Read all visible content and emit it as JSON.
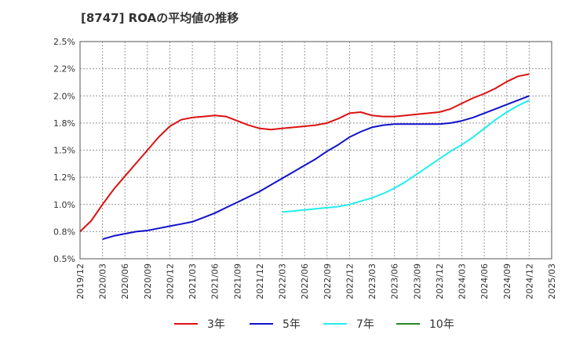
{
  "chart_data": {
    "type": "line",
    "title": "[8747]  ROAの平均値の推移",
    "xlabel": "",
    "ylabel": "",
    "ylim": [
      0.5,
      2.5
    ],
    "yticks": [
      "2.5%",
      "2.2%",
      "2.0%",
      "1.8%",
      "1.5%",
      "1.2%",
      "1.0%",
      "0.8%",
      "0.5%"
    ],
    "xticks": [
      "2019/12",
      "2020/03",
      "2020/06",
      "2020/09",
      "2020/12",
      "2021/03",
      "2021/06",
      "2021/09",
      "2021/12",
      "2022/03",
      "2022/06",
      "2022/09",
      "2022/12",
      "2023/03",
      "2023/06",
      "2023/09",
      "2023/12",
      "2024/03",
      "2024/06",
      "2024/09",
      "2024/12",
      "2025/03"
    ],
    "grid": true,
    "legend_position": "bottom",
    "series": [
      {
        "name": "3年",
        "color": "#dd1111",
        "points": [
          [
            0,
            0.75
          ],
          [
            0.5,
            0.85
          ],
          [
            1,
            1.0
          ],
          [
            1.5,
            1.14
          ],
          [
            2,
            1.26
          ],
          [
            2.5,
            1.38
          ],
          [
            3,
            1.5
          ],
          [
            3.5,
            1.62
          ],
          [
            4,
            1.72
          ],
          [
            4.5,
            1.78
          ],
          [
            5,
            1.8
          ],
          [
            5.5,
            1.81
          ],
          [
            6,
            1.82
          ],
          [
            6.5,
            1.81
          ],
          [
            7,
            1.77
          ],
          [
            7.5,
            1.73
          ],
          [
            8,
            1.7
          ],
          [
            8.5,
            1.69
          ],
          [
            9,
            1.7
          ],
          [
            9.5,
            1.71
          ],
          [
            10,
            1.72
          ],
          [
            10.5,
            1.73
          ],
          [
            11,
            1.75
          ],
          [
            11.5,
            1.79
          ],
          [
            12,
            1.84
          ],
          [
            12.5,
            1.85
          ],
          [
            13,
            1.82
          ],
          [
            13.5,
            1.81
          ],
          [
            14,
            1.81
          ],
          [
            14.5,
            1.82
          ],
          [
            15,
            1.83
          ],
          [
            15.5,
            1.84
          ],
          [
            16,
            1.85
          ],
          [
            16.5,
            1.88
          ],
          [
            17,
            1.93
          ],
          [
            17.5,
            1.98
          ],
          [
            18,
            2.02
          ],
          [
            18.5,
            2.07
          ],
          [
            19,
            2.13
          ],
          [
            19.5,
            2.18
          ],
          [
            20,
            2.2
          ]
        ]
      },
      {
        "name": "5年",
        "color": "#1111cc",
        "points": [
          [
            1,
            0.68
          ],
          [
            1.5,
            0.71
          ],
          [
            2,
            0.73
          ],
          [
            2.5,
            0.75
          ],
          [
            3,
            0.76
          ],
          [
            3.5,
            0.78
          ],
          [
            4,
            0.8
          ],
          [
            4.5,
            0.82
          ],
          [
            5,
            0.84
          ],
          [
            5.5,
            0.88
          ],
          [
            6,
            0.92
          ],
          [
            6.5,
            0.97
          ],
          [
            7,
            1.02
          ],
          [
            7.5,
            1.07
          ],
          [
            8,
            1.12
          ],
          [
            8.5,
            1.18
          ],
          [
            9,
            1.24
          ],
          [
            9.5,
            1.3
          ],
          [
            10,
            1.36
          ],
          [
            10.5,
            1.42
          ],
          [
            11,
            1.49
          ],
          [
            11.5,
            1.55
          ],
          [
            12,
            1.62
          ],
          [
            12.5,
            1.67
          ],
          [
            13,
            1.71
          ],
          [
            13.5,
            1.73
          ],
          [
            14,
            1.74
          ],
          [
            14.5,
            1.74
          ],
          [
            15,
            1.74
          ],
          [
            15.5,
            1.74
          ],
          [
            16,
            1.74
          ],
          [
            16.5,
            1.75
          ],
          [
            17,
            1.77
          ],
          [
            17.5,
            1.8
          ],
          [
            18,
            1.84
          ],
          [
            18.5,
            1.88
          ],
          [
            19,
            1.92
          ],
          [
            19.5,
            1.96
          ],
          [
            20,
            2.0
          ]
        ]
      },
      {
        "name": "7年",
        "color": "#22eeee",
        "points": [
          [
            9,
            0.93
          ],
          [
            9.5,
            0.94
          ],
          [
            10,
            0.95
          ],
          [
            10.5,
            0.96
          ],
          [
            11,
            0.97
          ],
          [
            11.5,
            0.98
          ],
          [
            12,
            1.0
          ],
          [
            12.5,
            1.03
          ],
          [
            13,
            1.06
          ],
          [
            13.5,
            1.1
          ],
          [
            14,
            1.15
          ],
          [
            14.5,
            1.21
          ],
          [
            15,
            1.28
          ],
          [
            15.5,
            1.35
          ],
          [
            16,
            1.42
          ],
          [
            16.5,
            1.49
          ],
          [
            17,
            1.55
          ],
          [
            17.5,
            1.62
          ],
          [
            18,
            1.7
          ],
          [
            18.5,
            1.78
          ],
          [
            19,
            1.85
          ],
          [
            19.5,
            1.91
          ],
          [
            20,
            1.96
          ]
        ]
      },
      {
        "name": "10年",
        "color": "#228822",
        "points": []
      }
    ]
  }
}
